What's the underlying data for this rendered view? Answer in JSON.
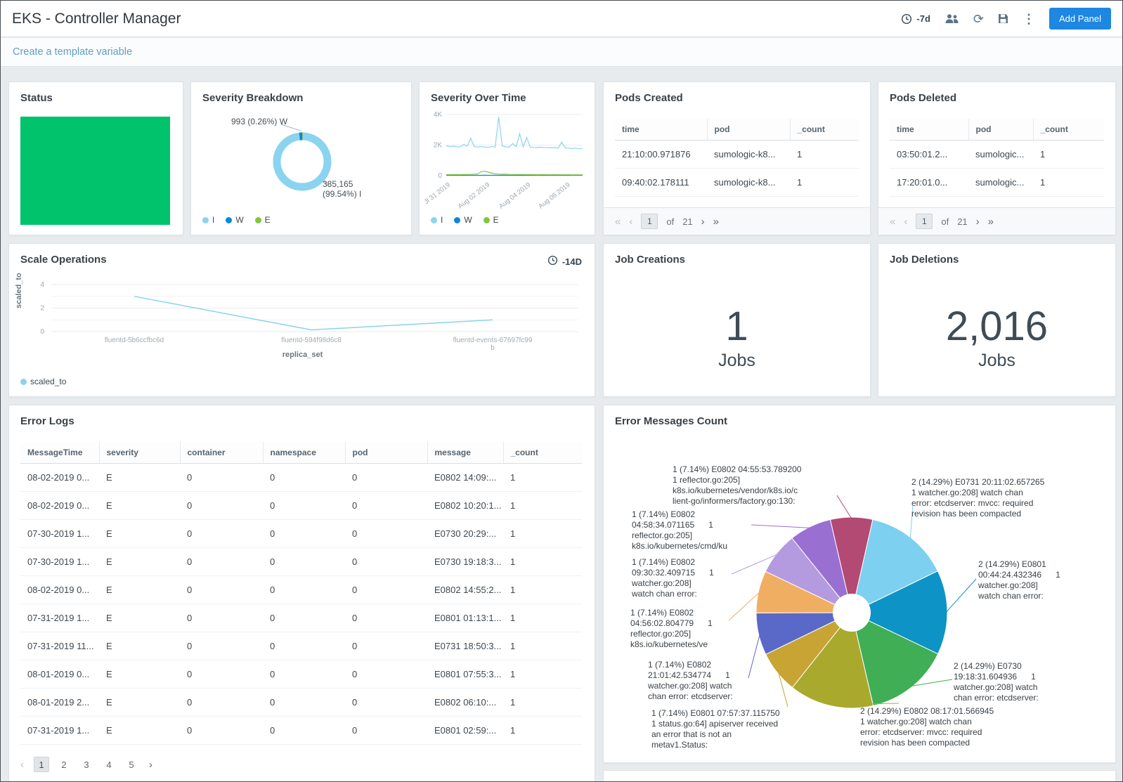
{
  "header": {
    "title": "EKS - Controller Manager",
    "time_range": "-7d",
    "add_panel": "Add Panel"
  },
  "glyphs": {
    "first": "«",
    "prev": "‹",
    "next": "›",
    "last": "»",
    "kebab": "⋮",
    "refresh": "⟳"
  },
  "template_bar": {
    "create_variable": "Create a template variable"
  },
  "status_panel": {
    "title": "Status",
    "color": "#00c36c"
  },
  "severity_breakdown": {
    "title": "Severity Breakdown",
    "callout_w": "993 (0.26%) W",
    "callout_i": "385,165\n(99.54%) I",
    "legend": [
      {
        "label": "I",
        "color": "#8ad4ef"
      },
      {
        "label": "W",
        "color": "#0b87d8"
      },
      {
        "label": "E",
        "color": "#85c440"
      }
    ],
    "chart_data": {
      "type": "donut",
      "slices": [
        {
          "label": "I",
          "value": 99.54,
          "count": "385,165",
          "color": "#8ad4ef"
        },
        {
          "label": "W",
          "value": 0.26,
          "count": "993",
          "color": "#0b87d8"
        },
        {
          "label": "E",
          "value": 0.2,
          "color": "#85c440"
        }
      ]
    }
  },
  "severity_over_time": {
    "title": "Severity Over Time",
    "legend": [
      {
        "label": "I",
        "color": "#8ad4ef"
      },
      {
        "label": "W",
        "color": "#0b87d8"
      },
      {
        "label": "E",
        "color": "#85c440"
      }
    ],
    "chart_data": {
      "type": "line",
      "ylim": [
        0,
        4000
      ],
      "y_ticks": [
        "0",
        "2K",
        "4K"
      ],
      "x_ticks": [
        "Jl 31 2019",
        "Aug 02 2019",
        "Aug 04 2019",
        "Aug 06 2019"
      ],
      "series": [
        {
          "name": "I",
          "color": "#8ad4ef",
          "values": [
            1950,
            1900,
            1930,
            1880,
            1900,
            2050,
            1920,
            2450,
            1900,
            1880,
            1900,
            1870,
            1850,
            1900,
            1870,
            3850,
            1950,
            1880,
            1860,
            2100,
            1900,
            2750,
            1880,
            2500,
            1870,
            1850,
            1840,
            1860,
            1830,
            1850,
            1820,
            1840,
            1800,
            2200,
            1820,
            1800,
            1780,
            1800,
            1760,
            1780
          ]
        },
        {
          "name": "W",
          "color": "#0b87d8",
          "values": [
            25,
            25,
            26,
            25,
            24,
            25,
            26,
            25,
            25,
            24,
            25,
            26,
            25,
            25,
            24,
            25,
            26,
            25,
            25,
            24,
            25,
            26,
            25,
            25,
            24,
            25,
            26,
            25,
            25,
            24,
            25,
            26,
            25,
            25,
            24,
            25,
            26,
            25,
            25,
            24
          ]
        },
        {
          "name": "E",
          "color": "#85c440",
          "values": [
            70,
            65,
            70,
            75,
            70,
            80,
            75,
            85,
            90,
            110,
            260,
            290,
            230,
            160,
            120,
            100,
            90,
            95,
            85,
            80,
            78,
            75,
            72,
            70,
            68,
            70,
            65,
            68,
            64,
            66,
            62,
            64,
            60,
            62,
            58,
            60,
            56,
            58,
            54,
            56
          ]
        }
      ]
    }
  },
  "pods_created": {
    "title": "Pods Created",
    "columns": [
      "time",
      "pod",
      "_count"
    ],
    "rows": [
      [
        "21:10:00.971876",
        "sumologic-k8...",
        "1"
      ],
      [
        "09:40:02.178111",
        "sumologic-k8...",
        "1"
      ]
    ],
    "pagination": {
      "page": "1",
      "of_label": "of",
      "total": "21"
    }
  },
  "pods_deleted": {
    "title": "Pods Deleted",
    "columns": [
      "time",
      "pod",
      "_count"
    ],
    "rows": [
      [
        "03:50:01.2...",
        "sumologic...",
        "1"
      ],
      [
        "17:20:01.0...",
        "sumologic...",
        "1"
      ]
    ],
    "pagination": {
      "page": "1",
      "of_label": "of",
      "total": "21"
    }
  },
  "scale_operations": {
    "title": "Scale Operations",
    "time_range": "-14D",
    "legend": "scaled_to",
    "chart_data": {
      "type": "line",
      "ylabel": "scaled_to",
      "xlabel": "replica_set",
      "categories": [
        "fluentd-5b6ccfbc6d",
        "fluentd-594f98d6c8",
        "fluentd-events-67697fc99b"
      ],
      "values": [
        3,
        0.15,
        1
      ],
      "y_ticks": [
        "0",
        "2",
        "4"
      ],
      "ylim": [
        0,
        4
      ],
      "color": "#8ad2ee"
    }
  },
  "job_creations": {
    "title": "Job Creations",
    "value": "1",
    "unit": "Jobs"
  },
  "job_deletions": {
    "title": "Job Deletions",
    "value": "2,016",
    "unit": "Jobs"
  },
  "error_logs": {
    "title": "Error Logs",
    "columns": [
      "MessageTime",
      "severity",
      "container",
      "namespace",
      "pod",
      "message",
      "_count"
    ],
    "rows": [
      [
        "08-02-2019 0...",
        "E",
        "0",
        "0",
        "0",
        "E0802 14:09:...",
        "1"
      ],
      [
        "08-02-2019 0...",
        "E",
        "0",
        "0",
        "0",
        "E0802 10:20:1...",
        "1"
      ],
      [
        "07-30-2019 1...",
        "E",
        "0",
        "0",
        "0",
        "E0730 20:29:...",
        "1"
      ],
      [
        "07-30-2019 1...",
        "E",
        "0",
        "0",
        "0",
        "E0730 19:18:3...",
        "1"
      ],
      [
        "08-02-2019 0...",
        "E",
        "0",
        "0",
        "0",
        "E0802 14:55:2...",
        "1"
      ],
      [
        "07-31-2019 1...",
        "E",
        "0",
        "0",
        "0",
        "E0801 01:13:1...",
        "1"
      ],
      [
        "07-31-2019 11...",
        "E",
        "0",
        "0",
        "0",
        "E0731 18:50:3...",
        "1"
      ],
      [
        "08-01-2019 0...",
        "E",
        "0",
        "0",
        "0",
        "E0801 07:55:3...",
        "1"
      ],
      [
        "08-01-2019 2...",
        "E",
        "0",
        "0",
        "0",
        "E0802 06:10:...",
        "1"
      ],
      [
        "07-31-2019 1...",
        "E",
        "0",
        "0",
        "0",
        "E0801 02:59:...",
        "1"
      ]
    ],
    "pagination": {
      "pages": [
        "1",
        "2",
        "3",
        "4",
        "5"
      ],
      "active": "1"
    }
  },
  "error_messages_count": {
    "title": "Error Messages Count",
    "chart_data": {
      "type": "pie",
      "total": 14,
      "slices": [
        {
          "value": 1,
          "pct": "7.14%",
          "color": "#b34a73",
          "label": "1 (7.14%) E0802 04:55:53.789200\n1 reflector.go:205]\nk8s.io/kubernetes/vendor/k8s.io/c\nlient-go/informers/factory.go:130:"
        },
        {
          "value": 2,
          "pct": "14.29%",
          "color": "#7ed0f1",
          "label": "2 (14.29%) E0731 20:11:02.657265\n1 watcher.go:208] watch chan\nerror: etcdserver: mvcc: required\nrevision has been compacted"
        },
        {
          "value": 2,
          "pct": "14.29%",
          "color": "#0d93c6",
          "label": "2 (14.29%) E0801\n00:44:24.432346      1\nwatcher.go:208]\nwatch chan error:"
        },
        {
          "value": 2,
          "pct": "14.29%",
          "color": "#3fae55",
          "label": "2 (14.29%) E0730\n19:18:31.604936      1\nwatcher.go:208] watch\nchan error: etcdserver:"
        },
        {
          "value": 2,
          "pct": "14.29%",
          "color": "#a9a92e",
          "label": "2 (14.29%) E0802 08:17:01.566945\n1 watcher.go:208] watch chan\nerror: etcdserver: mvcc: required\nrevision has been compacted"
        },
        {
          "value": 1,
          "pct": "7.14%",
          "color": "#c8a434",
          "label": "1 (7.14%) E0801 07:57:37.115750\n1 status.go:64] apiserver received\nan error that is not an\nmetav1.Status:"
        },
        {
          "value": 1,
          "pct": "7.14%",
          "color": "#5a68c8",
          "label": "1 (7.14%) E0802\n21:01:42.534774      1\nwatcher.go:208] watch\nchan error: etcdserver:"
        },
        {
          "value": 1,
          "pct": "7.14%",
          "color": "#f0ae63",
          "label": "1 (7.14%) E0802\n04:56:02.804779      1\nreflector.go:205]\nk8s.io/kubernetes/ve"
        },
        {
          "value": 1,
          "pct": "7.14%",
          "color": "#b49be0",
          "label": "1 (7.14%) E0802\n09:30:32.409715      1\nwatcher.go:208]\nwatch chan error:"
        },
        {
          "value": 1,
          "pct": "7.14%",
          "color": "#9a6fd2",
          "label": "1 (7.14%) E0802\n04:58:34.071165      1\nreflector.go:205]\nk8s.io/kubernetes/cmd/ku"
        }
      ]
    }
  }
}
